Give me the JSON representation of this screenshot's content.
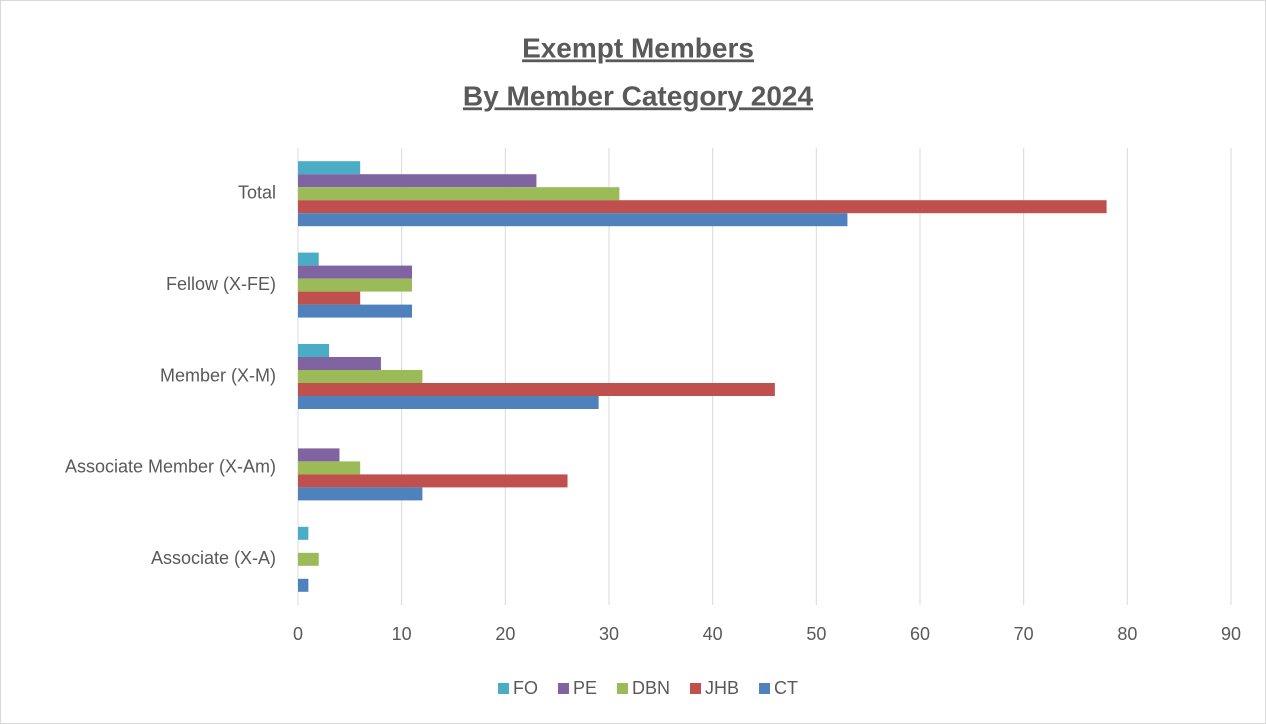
{
  "chart_data": {
    "type": "bar",
    "orientation": "horizontal",
    "title": "Exempt Members",
    "subtitle": "By Member Category 2024",
    "categories": [
      "Associate (X-A)",
      "Associate Member (X-Am)",
      "Member (X-M)",
      "Fellow (X-FE)",
      "Total"
    ],
    "series": [
      {
        "name": "FO",
        "color": "#4bacc6",
        "values": [
          1,
          0,
          3,
          2,
          6
        ]
      },
      {
        "name": "PE",
        "color": "#8064a2",
        "values": [
          0,
          4,
          8,
          11,
          23
        ]
      },
      {
        "name": "DBN",
        "color": "#9bbb59",
        "values": [
          2,
          6,
          12,
          11,
          31
        ]
      },
      {
        "name": "JHB",
        "color": "#c0504d",
        "values": [
          0,
          26,
          46,
          6,
          78
        ]
      },
      {
        "name": "CT",
        "color": "#4f81bd",
        "values": [
          1,
          12,
          29,
          11,
          53
        ]
      }
    ],
    "xlim": [
      0,
      90
    ],
    "xticks": [
      0,
      10,
      20,
      30,
      40,
      50,
      60,
      70,
      80,
      90
    ],
    "grid": true,
    "legend": "bottom"
  }
}
